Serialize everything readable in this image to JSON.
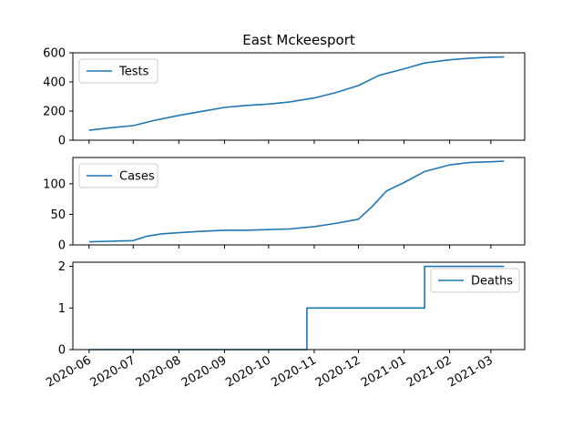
{
  "figure": {
    "title": "East Mckeesport",
    "line_color": "#1f77b4"
  },
  "chart_data": [
    {
      "type": "line",
      "series": [
        {
          "name": "Tests",
          "x": [
            "2020-06-01",
            "2020-06-15",
            "2020-07-01",
            "2020-07-15",
            "2020-08-01",
            "2020-08-15",
            "2020-09-01",
            "2020-09-15",
            "2020-10-01",
            "2020-10-15",
            "2020-11-01",
            "2020-11-15",
            "2020-12-01",
            "2020-12-15",
            "2021-01-01",
            "2021-01-15",
            "2021-02-01",
            "2021-02-15",
            "2021-03-01",
            "2021-03-10"
          ],
          "values": [
            68,
            85,
            100,
            135,
            170,
            195,
            225,
            238,
            248,
            262,
            290,
            325,
            375,
            445,
            490,
            530,
            552,
            563,
            570,
            571
          ]
        }
      ],
      "yticks": [
        "0",
        "200",
        "400",
        "600"
      ],
      "ylim": [
        0,
        600
      ],
      "legend": "upper-left",
      "grid": false
    },
    {
      "type": "line",
      "series": [
        {
          "name": "Cases",
          "x": [
            "2020-06-01",
            "2020-06-15",
            "2020-07-01",
            "2020-07-10",
            "2020-07-20",
            "2020-08-01",
            "2020-08-15",
            "2020-09-01",
            "2020-09-15",
            "2020-10-01",
            "2020-10-15",
            "2020-11-01",
            "2020-11-15",
            "2020-12-01",
            "2020-12-10",
            "2020-12-20",
            "2021-01-01",
            "2021-01-15",
            "2021-02-01",
            "2021-02-15",
            "2021-03-01",
            "2021-03-10"
          ],
          "values": [
            5,
            6,
            7,
            14,
            18,
            20,
            22,
            24,
            24,
            25,
            26,
            30,
            35,
            42,
            62,
            88,
            102,
            120,
            131,
            135,
            136,
            137
          ]
        }
      ],
      "yticks": [
        "0",
        "50",
        "100"
      ],
      "ylim": [
        0,
        143
      ],
      "legend": "upper-left",
      "grid": false
    },
    {
      "type": "line",
      "series": [
        {
          "name": "Deaths",
          "x": [
            "2020-06-01",
            "2020-10-27",
            "2020-10-27",
            "2021-01-15",
            "2021-01-15",
            "2021-03-10"
          ],
          "values": [
            0,
            0,
            1,
            1,
            2,
            2
          ]
        }
      ],
      "yticks": [
        "0",
        "1",
        "2"
      ],
      "ylim": [
        0,
        2.1
      ],
      "legend": "upper-right",
      "grid": false,
      "xticks": [
        "2020-06",
        "2020-07",
        "2020-08",
        "2020-09",
        "2020-10",
        "2020-11",
        "2020-12",
        "2021-01",
        "2021-02",
        "2021-03"
      ],
      "xlim": [
        "2020-05-21",
        "2021-03-24"
      ]
    }
  ]
}
